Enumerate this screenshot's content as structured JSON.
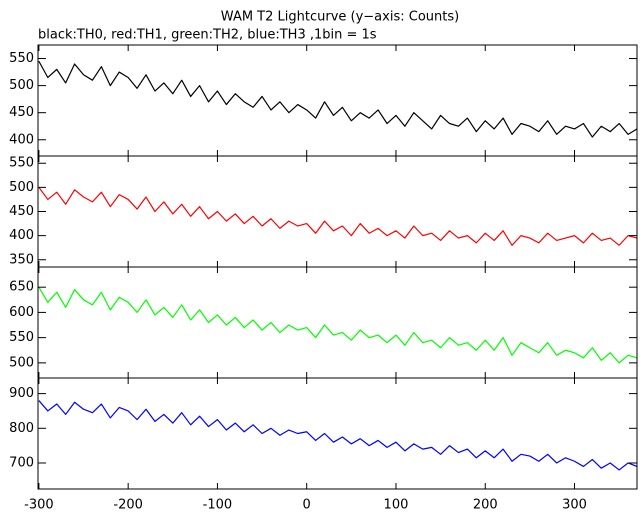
{
  "chart_data": [
    {
      "type": "line",
      "title": "WAM T2 Lightcurve (y−axis: Counts)",
      "subtitle": "black:TH0, red:TH1, green:TH2, blue:TH3 ,1bin = 1s",
      "color": "#000000",
      "xlim": [
        -301,
        370
      ],
      "xticks": [
        -300,
        -200,
        -100,
        0,
        100,
        200,
        300
      ],
      "ylim": [
        370,
        575
      ],
      "yticks": [
        400,
        450,
        500,
        550
      ],
      "x": [
        -300,
        -290,
        -280,
        -270,
        -260,
        -250,
        -240,
        -230,
        -220,
        -210,
        -200,
        -190,
        -180,
        -170,
        -160,
        -150,
        -140,
        -130,
        -120,
        -110,
        -100,
        -90,
        -80,
        -70,
        -60,
        -50,
        -40,
        -30,
        -20,
        -10,
        0,
        10,
        20,
        30,
        40,
        50,
        60,
        70,
        80,
        90,
        100,
        110,
        120,
        130,
        140,
        150,
        160,
        170,
        180,
        190,
        200,
        210,
        220,
        230,
        240,
        250,
        260,
        270,
        280,
        290,
        300,
        310,
        320,
        330,
        340,
        350,
        360,
        370
      ],
      "values": [
        545,
        515,
        530,
        505,
        540,
        520,
        510,
        535,
        500,
        525,
        515,
        495,
        520,
        490,
        505,
        485,
        510,
        480,
        500,
        470,
        490,
        465,
        485,
        470,
        460,
        480,
        455,
        470,
        450,
        465,
        455,
        440,
        470,
        445,
        460,
        435,
        450,
        440,
        455,
        430,
        445,
        425,
        450,
        435,
        420,
        445,
        430,
        425,
        440,
        415,
        435,
        420,
        440,
        410,
        430,
        425,
        415,
        435,
        410,
        425,
        420,
        430,
        405,
        425,
        415,
        430,
        410,
        420
      ]
    },
    {
      "type": "line",
      "color": "#ff0000",
      "xlim": [
        -301,
        370
      ],
      "xticks": [
        -300,
        -200,
        -100,
        0,
        100,
        200,
        300
      ],
      "ylim": [
        335,
        565
      ],
      "yticks": [
        350,
        400,
        450,
        500,
        550
      ],
      "x": [
        -300,
        -290,
        -280,
        -270,
        -260,
        -250,
        -240,
        -230,
        -220,
        -210,
        -200,
        -190,
        -180,
        -170,
        -160,
        -150,
        -140,
        -130,
        -120,
        -110,
        -100,
        -90,
        -80,
        -70,
        -60,
        -50,
        -40,
        -30,
        -20,
        -10,
        0,
        10,
        20,
        30,
        40,
        50,
        60,
        70,
        80,
        90,
        100,
        110,
        120,
        130,
        140,
        150,
        160,
        170,
        180,
        190,
        200,
        210,
        220,
        230,
        240,
        250,
        260,
        270,
        280,
        290,
        300,
        310,
        320,
        330,
        340,
        350,
        360,
        370
      ],
      "values": [
        500,
        475,
        490,
        465,
        495,
        480,
        470,
        490,
        460,
        485,
        475,
        455,
        480,
        450,
        470,
        445,
        465,
        440,
        460,
        435,
        450,
        430,
        445,
        425,
        440,
        420,
        435,
        415,
        430,
        420,
        425,
        405,
        430,
        410,
        420,
        400,
        425,
        405,
        415,
        400,
        410,
        395,
        420,
        400,
        405,
        390,
        410,
        395,
        400,
        385,
        405,
        390,
        410,
        380,
        400,
        395,
        385,
        405,
        390,
        395,
        400,
        385,
        405,
        390,
        395,
        380,
        400,
        395
      ]
    },
    {
      "type": "line",
      "color": "#00ff00",
      "xlim": [
        -301,
        370
      ],
      "xticks": [
        -300,
        -200,
        -100,
        0,
        100,
        200,
        300
      ],
      "ylim": [
        470,
        690
      ],
      "yticks": [
        500,
        550,
        600,
        650
      ],
      "x": [
        -300,
        -290,
        -280,
        -270,
        -260,
        -250,
        -240,
        -230,
        -220,
        -210,
        -200,
        -190,
        -180,
        -170,
        -160,
        -150,
        -140,
        -130,
        -120,
        -110,
        -100,
        -90,
        -80,
        -70,
        -60,
        -50,
        -40,
        -30,
        -20,
        -10,
        0,
        10,
        20,
        30,
        40,
        50,
        60,
        70,
        80,
        90,
        100,
        110,
        120,
        130,
        140,
        150,
        160,
        170,
        180,
        190,
        200,
        210,
        220,
        230,
        240,
        250,
        260,
        270,
        280,
        290,
        300,
        310,
        320,
        330,
        340,
        350,
        360,
        370
      ],
      "values": [
        650,
        620,
        640,
        610,
        645,
        625,
        615,
        640,
        605,
        630,
        620,
        600,
        625,
        595,
        610,
        590,
        615,
        585,
        605,
        580,
        595,
        575,
        590,
        570,
        585,
        565,
        580,
        560,
        575,
        565,
        570,
        550,
        575,
        555,
        560,
        545,
        565,
        550,
        555,
        540,
        555,
        535,
        560,
        540,
        545,
        530,
        550,
        535,
        540,
        525,
        545,
        525,
        550,
        515,
        540,
        530,
        520,
        540,
        515,
        525,
        520,
        510,
        530,
        505,
        520,
        500,
        515,
        510
      ]
    },
    {
      "type": "line",
      "color": "#0000ff",
      "xlim": [
        -301,
        370
      ],
      "xticks": [
        -300,
        -200,
        -100,
        0,
        100,
        200,
        300
      ],
      "ylim": [
        625,
        945
      ],
      "yticks": [
        700,
        800,
        900
      ],
      "x": [
        -300,
        -290,
        -280,
        -270,
        -260,
        -250,
        -240,
        -230,
        -220,
        -210,
        -200,
        -190,
        -180,
        -170,
        -160,
        -150,
        -140,
        -130,
        -120,
        -110,
        -100,
        -90,
        -80,
        -70,
        -60,
        -50,
        -40,
        -30,
        -20,
        -10,
        0,
        10,
        20,
        30,
        40,
        50,
        60,
        70,
        80,
        90,
        100,
        110,
        120,
        130,
        140,
        150,
        160,
        170,
        180,
        190,
        200,
        210,
        220,
        230,
        240,
        250,
        260,
        270,
        280,
        290,
        300,
        310,
        320,
        330,
        340,
        350,
        360,
        370
      ],
      "values": [
        880,
        850,
        870,
        840,
        875,
        855,
        845,
        870,
        830,
        860,
        850,
        825,
        855,
        820,
        840,
        815,
        845,
        810,
        835,
        805,
        825,
        795,
        815,
        790,
        810,
        785,
        800,
        780,
        795,
        785,
        790,
        765,
        785,
        760,
        775,
        755,
        770,
        750,
        765,
        745,
        760,
        735,
        755,
        740,
        745,
        725,
        750,
        730,
        740,
        715,
        735,
        715,
        740,
        705,
        725,
        720,
        705,
        725,
        700,
        715,
        705,
        690,
        710,
        685,
        700,
        680,
        700,
        690
      ]
    }
  ]
}
